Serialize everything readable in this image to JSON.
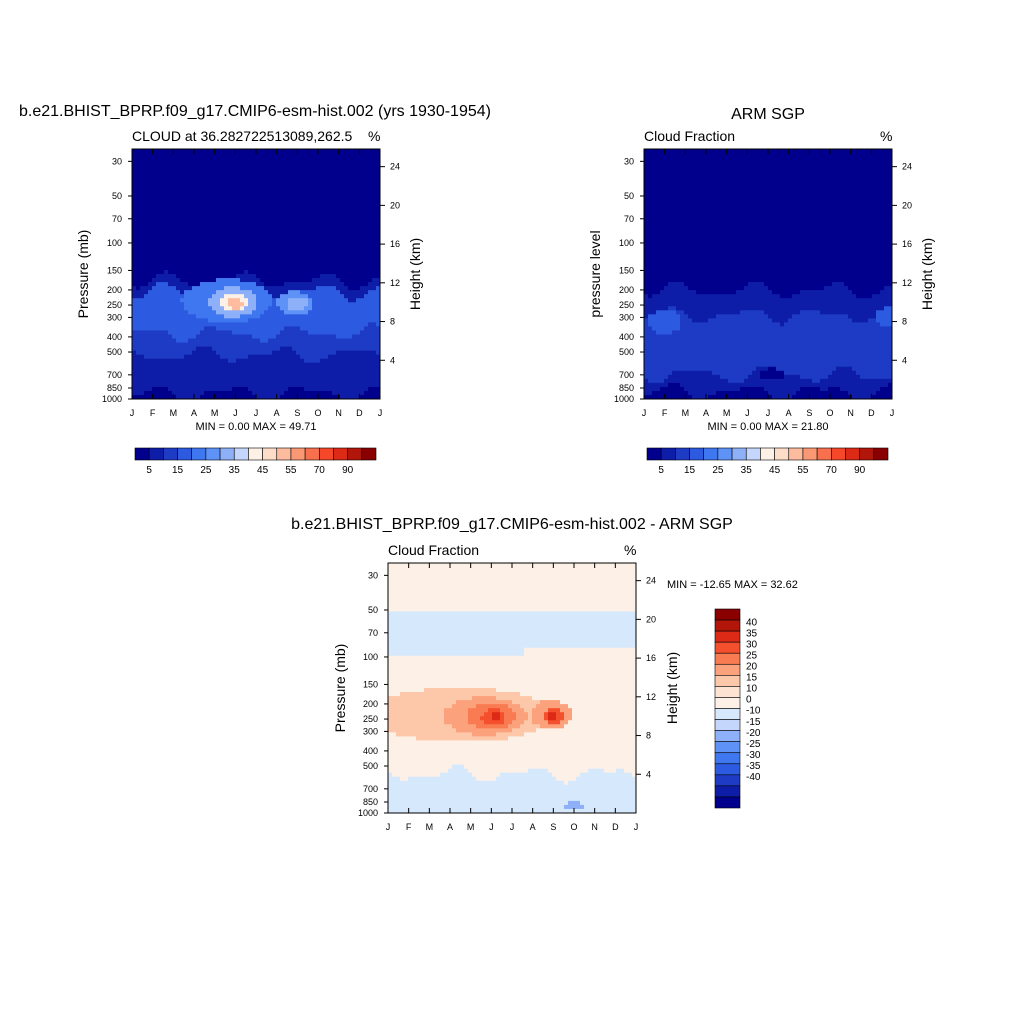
{
  "figure": {
    "background": "#ffffff"
  },
  "palette": [
    "#00008c",
    "#0e1da8",
    "#1d3bc4",
    "#2c5ae0",
    "#3f77f0",
    "#5f92f6",
    "#8eb0f9",
    "#c4d6fc",
    "#fdf0e6",
    "#fddcc8",
    "#fcbc9d",
    "#fa9873",
    "#f8704d",
    "#f5482a",
    "#dc2a17",
    "#b21509",
    "#8a0000"
  ],
  "colorbar_labels": [
    "5",
    "15",
    "25",
    "35",
    "45",
    "55",
    "70",
    "90"
  ],
  "diff_palette": [
    "#00008c",
    "#0e1da8",
    "#1d3bc4",
    "#2c5ae0",
    "#3f77f0",
    "#5f92f6",
    "#8eb0f9",
    "#c4d6fc",
    "#d6e8fc",
    "#fdf0e6",
    "#fde4d2",
    "#fcc8a9",
    "#fba27c",
    "#f97b52",
    "#f5502d",
    "#dc2a17",
    "#b21509",
    "#8a0000"
  ],
  "diff_colorbar_labels": [
    "40",
    "35",
    "30",
    "25",
    "20",
    "15",
    "10",
    "0",
    "-10",
    "-15",
    "-20",
    "-25",
    "-30",
    "-35",
    "-40"
  ],
  "chart_data": [
    {
      "type": "heatmap",
      "panel": "model",
      "title": "b.e21.BHIST_BPRP.f09_g17.CMIP6-esm-hist.002 (yrs 1930-1954)",
      "subtitle_left": "CLOUD at 36.282722513089,262.5",
      "subtitle_right": "%",
      "xlabel": "",
      "ylabel": "Pressure (mb)",
      "ylabel_right": "Height (km)",
      "stats": "MIN =   0.00 MAX =  49.71",
      "x_tick_labels": [
        "J",
        "F",
        "M",
        "A",
        "M",
        "J",
        "J",
        "A",
        "S",
        "O",
        "N",
        "D",
        "J"
      ],
      "y_ticks": [
        30,
        50,
        70,
        100,
        150,
        200,
        250,
        300,
        400,
        500,
        700,
        850,
        1000
      ],
      "y_scale": "log",
      "ylim": [
        1000,
        25
      ],
      "right_ticks": [
        24,
        20,
        16,
        12,
        8,
        4
      ],
      "background_value": 3,
      "features": [
        {
          "kind": "band",
          "p_top": 175,
          "value": 8
        },
        {
          "kind": "band",
          "p_top": 205,
          "value": 18
        },
        {
          "kind": "blob",
          "month": 4.6,
          "p": 235,
          "wx": 2.2,
          "hp": 0.32,
          "value": 22
        },
        {
          "kind": "blob",
          "month": 4.9,
          "p": 240,
          "wx": 1.2,
          "hp": 0.22,
          "value": 33
        },
        {
          "kind": "blob",
          "month": 4.9,
          "p": 240,
          "wx": 0.7,
          "hp": 0.14,
          "value": 44
        },
        {
          "kind": "blob",
          "month": 5.0,
          "p": 245,
          "wx": 0.35,
          "hp": 0.08,
          "value": 50
        },
        {
          "kind": "blob",
          "month": 7.9,
          "p": 245,
          "wx": 0.9,
          "hp": 0.18,
          "value": 25
        },
        {
          "kind": "blob",
          "month": 8.0,
          "p": 245,
          "wx": 0.5,
          "hp": 0.1,
          "value": 31
        },
        {
          "kind": "band",
          "p_top": 380,
          "value": 12
        },
        {
          "kind": "band",
          "p_top": 520,
          "value": 8
        },
        {
          "kind": "band",
          "p_top": 750,
          "value": 5
        },
        {
          "kind": "band",
          "p_top": 920,
          "value": 2
        }
      ]
    },
    {
      "type": "heatmap",
      "panel": "obs",
      "title": "ARM SGP",
      "subtitle_left": "Cloud Fraction",
      "subtitle_right": "%",
      "xlabel": "",
      "ylabel": "pressure level",
      "ylabel_right": "Height (km)",
      "stats": "MIN =   0.00 MAX =  21.80",
      "x_tick_labels": [
        "J",
        "F",
        "M",
        "A",
        "M",
        "J",
        "J",
        "A",
        "S",
        "O",
        "N",
        "D",
        "J"
      ],
      "y_ticks": [
        30,
        50,
        70,
        100,
        150,
        200,
        250,
        300,
        400,
        500,
        700,
        850,
        1000
      ],
      "y_scale": "log",
      "ylim": [
        1000,
        25
      ],
      "right_ticks": [
        24,
        20,
        16,
        12,
        8,
        4
      ],
      "background_value": 2,
      "features": [
        {
          "kind": "band",
          "p_top": 200,
          "value": 8
        },
        {
          "kind": "band",
          "p_top": 290,
          "value": 13
        },
        {
          "kind": "blob",
          "month": 1.0,
          "p": 320,
          "wx": 0.8,
          "hp": 0.18,
          "value": 18
        },
        {
          "kind": "blob",
          "month": 11.8,
          "p": 300,
          "wx": 0.6,
          "hp": 0.15,
          "value": 17
        },
        {
          "kind": "band",
          "p_top": 480,
          "value": 10
        },
        {
          "kind": "band",
          "p_top": 700,
          "value": 6
        },
        {
          "kind": "blob",
          "month": 6.2,
          "p": 690,
          "wx": 0.6,
          "hp": 0.08,
          "value": 0
        },
        {
          "kind": "band",
          "p_top": 900,
          "value": 4
        }
      ]
    },
    {
      "type": "heatmap",
      "panel": "difference",
      "title": "b.e21.BHIST_BPRP.f09_g17.CMIP6-esm-hist.002 - ARM SGP",
      "subtitle_left": "Cloud Fraction",
      "subtitle_right": "%",
      "xlabel": "",
      "ylabel": "Pressure (mb)",
      "ylabel_right": "Height (km)",
      "stats": "MIN = -12.65 MAX =  32.62",
      "x_tick_labels": [
        "J",
        "F",
        "M",
        "A",
        "M",
        "J",
        "J",
        "A",
        "S",
        "O",
        "N",
        "D",
        "J"
      ],
      "y_ticks": [
        30,
        50,
        70,
        100,
        150,
        200,
        250,
        300,
        400,
        500,
        700,
        850,
        1000
      ],
      "y_scale": "log",
      "ylim": [
        1000,
        25
      ],
      "right_ticks": [
        24,
        20,
        16,
        12,
        8,
        4
      ],
      "background_value": 4,
      "features": [
        {
          "kind": "band_range",
          "p_top": 50,
          "p_bot": 100,
          "value": -4
        },
        {
          "kind": "blob",
          "month": 3.5,
          "p": 235,
          "wx": 4.5,
          "hp": 0.4,
          "value": 12
        },
        {
          "kind": "blob",
          "month": 4.7,
          "p": 240,
          "wx": 2.0,
          "hp": 0.28,
          "value": 18
        },
        {
          "kind": "blob",
          "month": 5.0,
          "p": 240,
          "wx": 1.2,
          "hp": 0.2,
          "value": 24
        },
        {
          "kind": "blob",
          "month": 5.1,
          "p": 245,
          "wx": 0.6,
          "hp": 0.12,
          "value": 29
        },
        {
          "kind": "blob",
          "month": 5.2,
          "p": 245,
          "wx": 0.25,
          "hp": 0.06,
          "value": 32
        },
        {
          "kind": "blob",
          "month": 7.9,
          "p": 235,
          "wx": 1.0,
          "hp": 0.22,
          "value": 18
        },
        {
          "kind": "blob",
          "month": 8.0,
          "p": 240,
          "wx": 0.5,
          "hp": 0.12,
          "value": 26
        },
        {
          "kind": "blob",
          "month": 8.0,
          "p": 240,
          "wx": 0.2,
          "hp": 0.06,
          "value": 30
        },
        {
          "kind": "band",
          "p_top": 560,
          "value": -3
        },
        {
          "kind": "blob",
          "month": 9.0,
          "p": 900,
          "wx": 0.5,
          "hp": 0.05,
          "value": -11
        }
      ]
    }
  ]
}
